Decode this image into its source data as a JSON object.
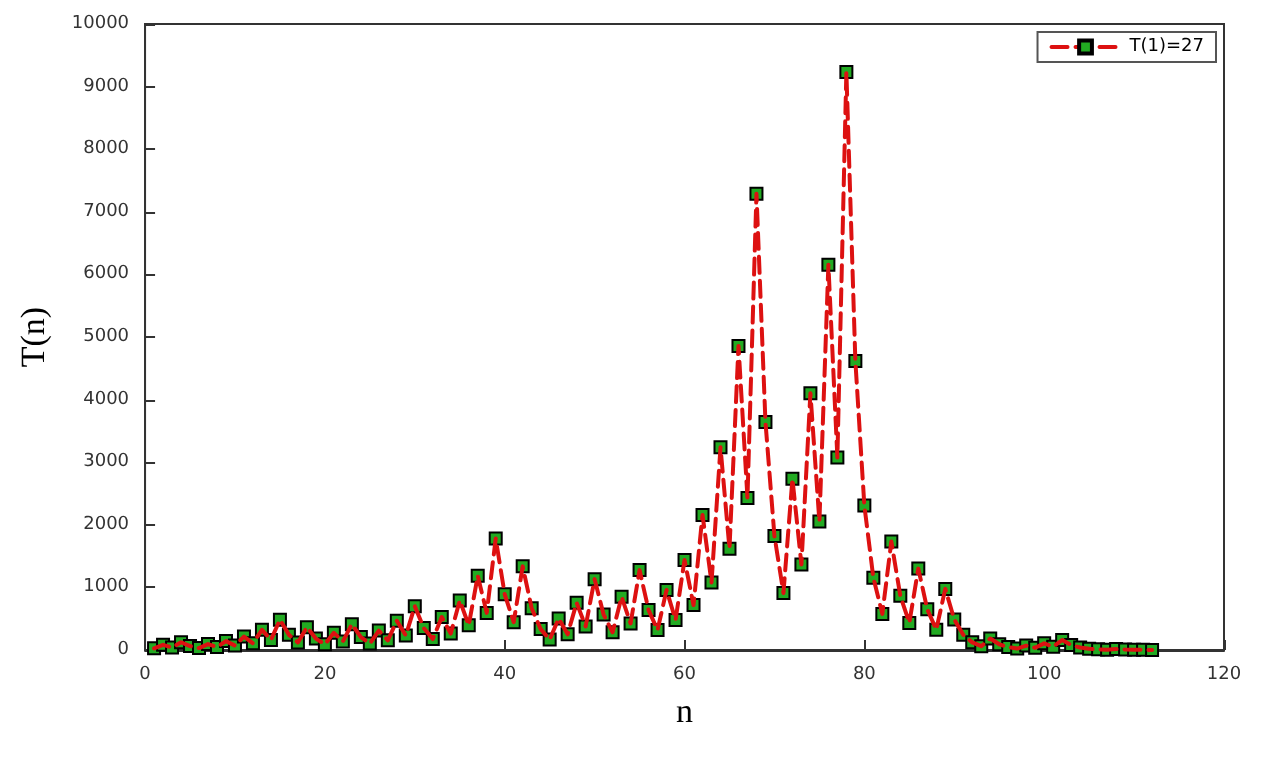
{
  "chart_data": {
    "type": "line",
    "xlabel": "n",
    "ylabel": "T(n)",
    "x": [
      1,
      2,
      3,
      4,
      5,
      6,
      7,
      8,
      9,
      10,
      11,
      12,
      13,
      14,
      15,
      16,
      17,
      18,
      19,
      20,
      21,
      22,
      23,
      24,
      25,
      26,
      27,
      28,
      29,
      30,
      31,
      32,
      33,
      34,
      35,
      36,
      37,
      38,
      39,
      40,
      41,
      42,
      43,
      44,
      45,
      46,
      47,
      48,
      49,
      50,
      51,
      52,
      53,
      54,
      55,
      56,
      57,
      58,
      59,
      60,
      61,
      62,
      63,
      64,
      65,
      66,
      67,
      68,
      69,
      70,
      71,
      72,
      73,
      74,
      75,
      76,
      77,
      78,
      79,
      80,
      81,
      82,
      83,
      84,
      85,
      86,
      87,
      88,
      89,
      90,
      91,
      92,
      93,
      94,
      95,
      96,
      97,
      98,
      99,
      100,
      101,
      102,
      103,
      104,
      105,
      106,
      107,
      108,
      109,
      110,
      111,
      112
    ],
    "series": [
      {
        "name": "T(1)=27",
        "color": "#dd1111",
        "values": [
          27,
          82,
          41,
          124,
          62,
          31,
          94,
          47,
          142,
          71,
          214,
          107,
          322,
          161,
          484,
          242,
          121,
          364,
          182,
          91,
          274,
          137,
          412,
          206,
          103,
          310,
          155,
          466,
          233,
          700,
          350,
          175,
          526,
          263,
          790,
          395,
          1186,
          593,
          1780,
          890,
          445,
          1336,
          668,
          334,
          167,
          502,
          251,
          754,
          377,
          1132,
          566,
          283,
          850,
          425,
          1276,
          638,
          319,
          958,
          479,
          1438,
          719,
          2158,
          1079,
          3238,
          1619,
          4858,
          2429,
          7288,
          3644,
          1822,
          911,
          2734,
          1367,
          4102,
          2051,
          6154,
          3077,
          9232,
          4616,
          2308,
          1154,
          577,
          1732,
          866,
          433,
          1300,
          650,
          325,
          976,
          488,
          244,
          122,
          61,
          184,
          92,
          46,
          23,
          70,
          35,
          106,
          53,
          160,
          80,
          40,
          20,
          10,
          5,
          16,
          8,
          4,
          2,
          1
        ]
      }
    ],
    "xlim": [
      0,
      120
    ],
    "xticks": [
      0,
      20,
      40,
      60,
      80,
      100,
      120
    ],
    "ylim": [
      0,
      10000
    ],
    "yticks": [
      0,
      1000,
      2000,
      3000,
      4000,
      5000,
      6000,
      7000,
      8000,
      9000,
      10000
    ],
    "grid": false,
    "legend": "top right",
    "marker": "square",
    "line_style": "dashed"
  }
}
